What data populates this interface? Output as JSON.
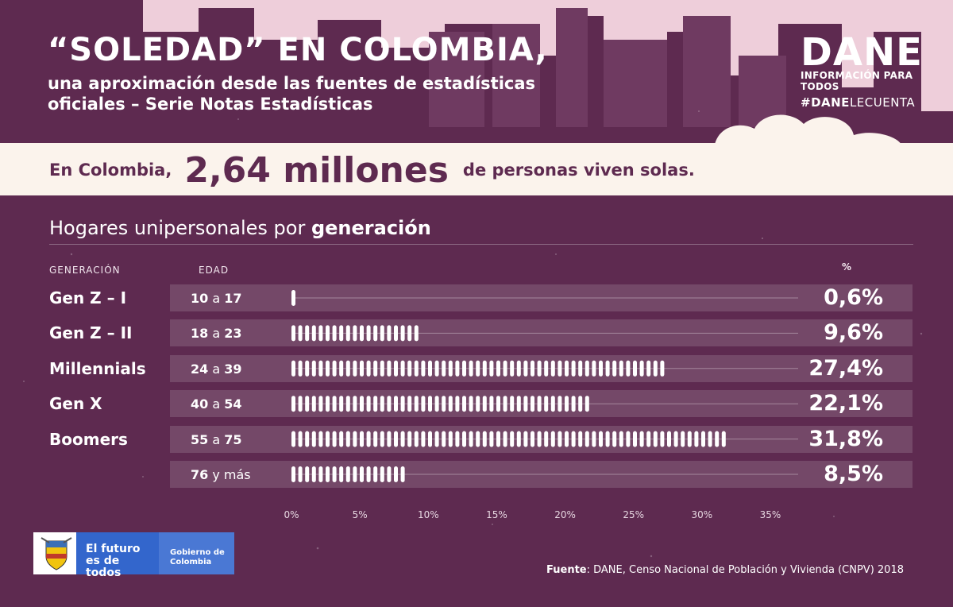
{
  "header": {
    "title": "“SOLEDAD” EN COLOMBIA,",
    "subtitle": "una aproximación desde las fuentes de estadísticas oficiales – Serie Notas Estadísticas",
    "logo": "DANE",
    "logo_tagline": "INFORMACIÓN PARA TODOS",
    "hashtag_bold": "#DANE",
    "hashtag_rest": "LECUENTA"
  },
  "highlight": {
    "prefix": "En Colombia,",
    "value": "2,64 millones",
    "suffix": "de personas viven solas."
  },
  "section": {
    "title_regular": "Hogares unipersonales por",
    "title_bold": "generación",
    "col_generation": "GENERACIÓN",
    "col_age": "EDAD",
    "col_pct": "%"
  },
  "chart_data": {
    "type": "bar",
    "orientation": "horizontal",
    "categories": [
      "Gen Z – I",
      "Gen Z – II",
      "Millennials",
      "Gen X",
      "Boomers",
      ""
    ],
    "ages": [
      {
        "from": "10",
        "sep": "a",
        "to": "17"
      },
      {
        "from": "18",
        "sep": "a",
        "to": "23"
      },
      {
        "from": "24",
        "sep": "a",
        "to": "39"
      },
      {
        "from": "40",
        "sep": "a",
        "to": "54"
      },
      {
        "from": "55",
        "sep": "a",
        "to": "75"
      },
      {
        "from": "76",
        "sep": "y más",
        "to": ""
      }
    ],
    "values": [
      0.6,
      9.6,
      27.4,
      22.1,
      31.8,
      8.5
    ],
    "value_labels": [
      "0,6%",
      "9,6%",
      "27,4%",
      "22,1%",
      "31,8%",
      "8,5%"
    ],
    "xticks": [
      "0%",
      "5%",
      "10%",
      "15%",
      "20%",
      "25%",
      "30%",
      "35%"
    ],
    "xlim": [
      0,
      35
    ]
  },
  "footer": {
    "gov_slogan": "El futuro es de todos",
    "gov_name": "Gobierno de Colombia",
    "source_label": "Fuente",
    "source_text": ": DANE, Censo Nacional de Población y Vivienda (CNPV) 2018"
  },
  "colors": {
    "background": "#5e2a50",
    "band": "#fbf3ec",
    "sky": "#f6d7e2"
  }
}
